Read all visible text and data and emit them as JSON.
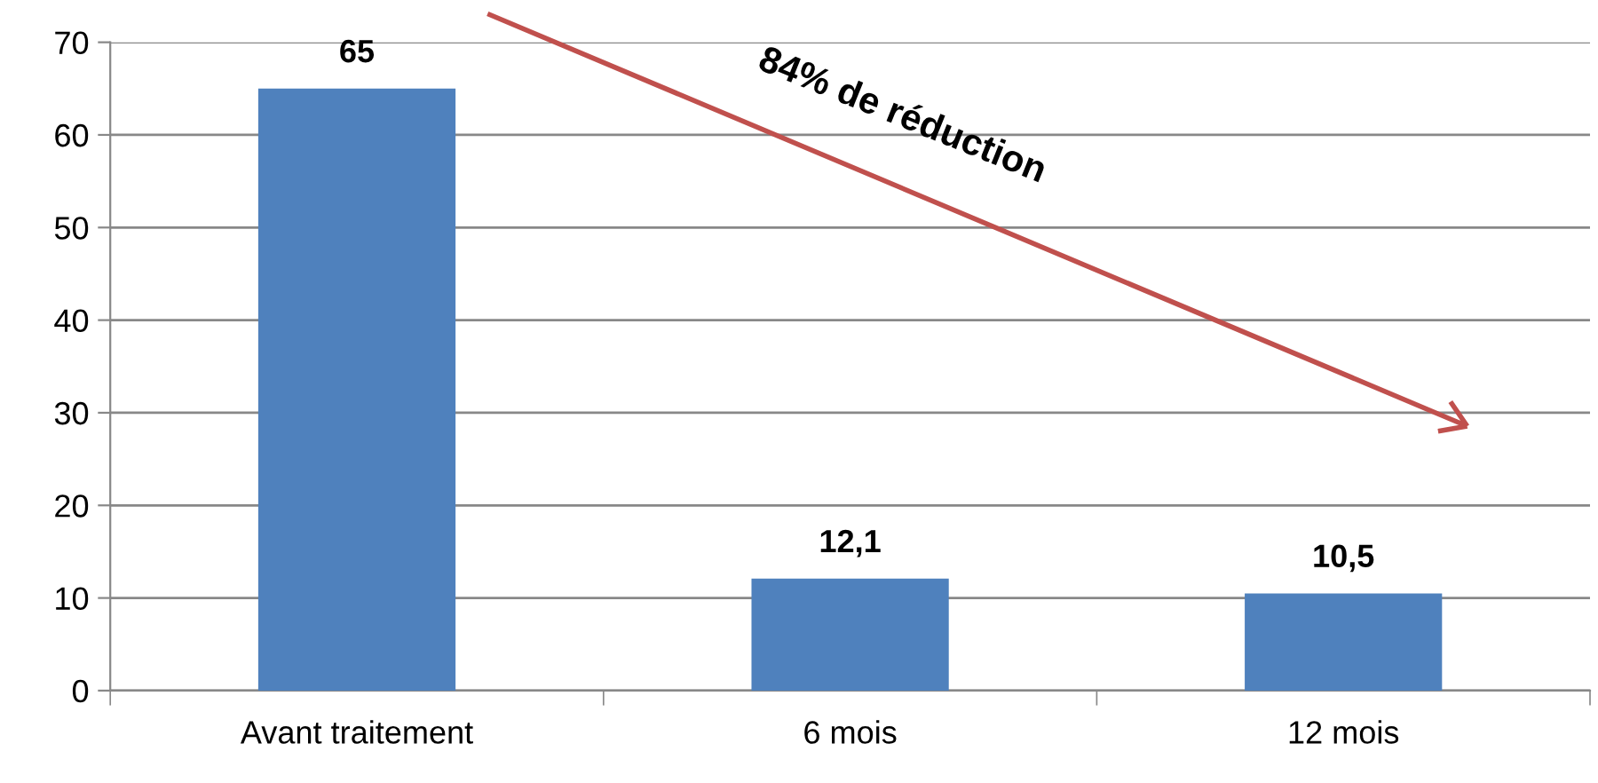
{
  "chart_data": {
    "type": "bar",
    "categories": [
      "Avant traitement",
      "6 mois",
      "12 mois"
    ],
    "values": [
      65,
      12.1,
      10.5
    ],
    "value_labels": [
      "65",
      "12,1",
      "10,5"
    ],
    "color": "#4f81bd",
    "ylim": [
      0,
      70
    ],
    "yticks": [
      0,
      10,
      20,
      30,
      40,
      50,
      60,
      70
    ],
    "grid": "y",
    "legend": false,
    "annotations": [
      "84% de réduction"
    ]
  }
}
